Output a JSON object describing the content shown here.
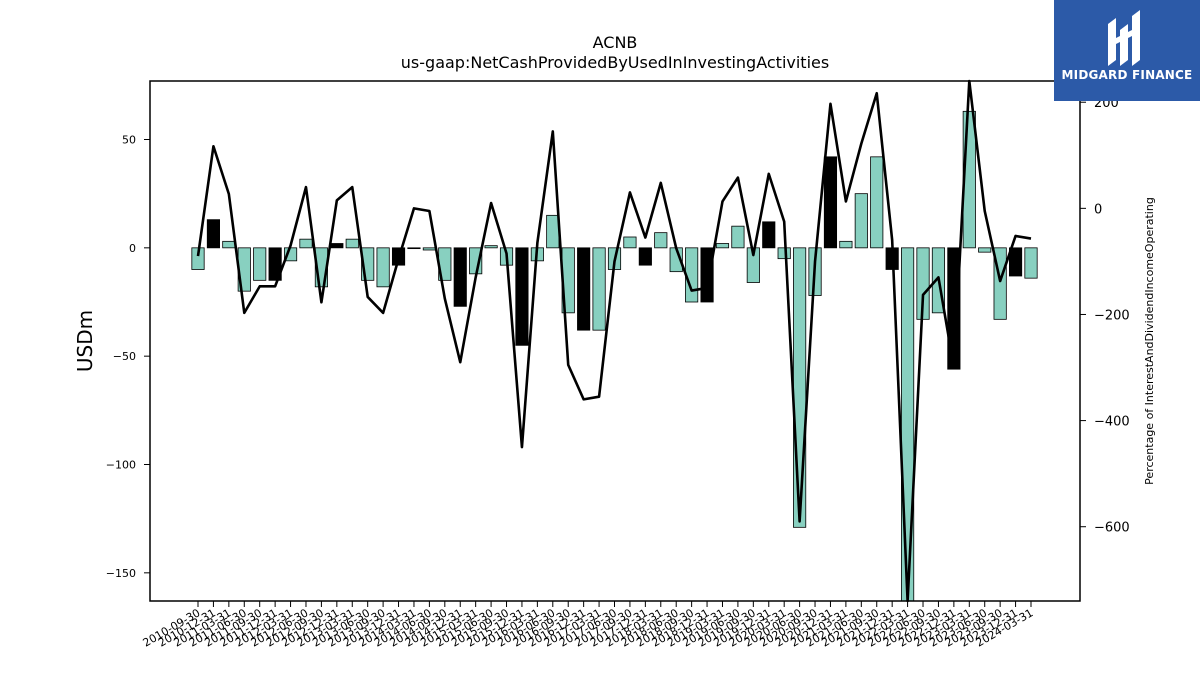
{
  "brand": {
    "name": "MIDGARD FINANCE",
    "color": "#2c5aa8"
  },
  "chart_data": {
    "type": "bar",
    "title": "ACNB",
    "subtitle": "us-gaap:NetCashProvidedByUsedInInvestingActivities",
    "ylabel": "USDm",
    "y2label": "Percentage of InterestAndDividendIncomeOperating",
    "ylim": [
      -163,
      77
    ],
    "y2lim": [
      -740,
      240
    ],
    "yticks": [
      -150,
      -100,
      -50,
      0,
      50
    ],
    "y2ticks": [
      -600,
      -400,
      -200,
      0,
      200
    ],
    "bar_colors": {
      "normal": "#88d0c0",
      "q4": "#000000"
    },
    "categories": [
      "2010-09-30",
      "2010-12-31",
      "2011-03-31",
      "2011-06-30",
      "2011-09-30",
      "2011-12-31",
      "2012-03-31",
      "2012-06-30",
      "2012-09-30",
      "2012-12-31",
      "2013-03-31",
      "2013-06-30",
      "2013-09-30",
      "2013-12-31",
      "2014-03-31",
      "2014-06-30",
      "2014-09-30",
      "2014-12-31",
      "2015-03-31",
      "2015-06-30",
      "2015-09-30",
      "2015-12-31",
      "2016-03-31",
      "2016-06-30",
      "2016-09-30",
      "2016-12-31",
      "2017-03-31",
      "2017-06-30",
      "2017-09-30",
      "2017-12-31",
      "2018-03-31",
      "2018-06-30",
      "2018-09-30",
      "2018-12-31",
      "2019-03-31",
      "2019-06-30",
      "2019-09-30",
      "2019-12-31",
      "2020-03-31",
      "2020-06-30",
      "2020-09-30",
      "2020-12-31",
      "2021-03-31",
      "2021-06-30",
      "2021-09-30",
      "2021-12-31",
      "2022-03-31",
      "2022-06-30",
      "2022-09-30",
      "2022-12-31",
      "2023-03-31",
      "2023-06-30",
      "2023-09-30",
      "2023-12-31",
      "2024-03-31"
    ],
    "x_tick_labels": [
      "2010-09-30",
      "2010-12-31",
      "2011-03-31",
      "2011-06-30",
      "2011-09-30",
      "2011-12-31",
      "2012-03-31",
      "2012-06-30",
      "2012-09-30",
      "2012-12-31",
      "2013-03-31",
      "2013-06-30",
      "2013-09-30",
      "2013-12-31",
      "2014-03-31",
      "2014-06-30",
      "2014-09-30",
      "2014-12-31",
      "2015-03-31",
      "2015-06-30",
      "2015-09-30",
      "2015-12-31",
      "2016-03-31",
      "2016-06-30",
      "2016-09-30",
      "2016-12-31",
      "2017-03-31",
      "2017-06-30",
      "2017-09-30",
      "2017-12-31",
      "2018-03-31",
      "2018-06-30",
      "2018-09-30",
      "2018-12-31",
      "2019-03-31",
      "2019-06-30",
      "2019-09-30",
      "2019-12-31",
      "2020-03-31",
      "2020-06-30",
      "2020-09-30",
      "2020-12-31",
      "2021-03-31",
      "2021-06-30",
      "2021-09-30",
      "2021-12-31",
      "2022-03-31",
      "2022-06-30",
      "2022-09-30",
      "2022-12-31",
      "2023-03-31",
      "2023-06-30",
      "2023-09-30",
      "2023-12-31",
      "2024-03-31"
    ],
    "series": [
      {
        "axis": "left",
        "kind": "bar",
        "values": [
          -10,
          13,
          3,
          -20,
          -15,
          -15,
          -6,
          4,
          -18,
          2,
          4,
          -15,
          -18,
          -8,
          0,
          -1,
          -15,
          -27,
          -12,
          1,
          -8,
          -45,
          -6,
          15,
          -30,
          -38,
          -38,
          -10,
          5,
          -8,
          7,
          -11,
          -25,
          -25,
          2,
          10,
          -16,
          12,
          -5,
          -129,
          -22,
          42,
          3,
          25,
          42,
          -10,
          -163,
          -33,
          -30,
          -56,
          63,
          -2,
          -33,
          -13,
          -14
        ],
        "highlight": [
          false,
          true,
          false,
          false,
          false,
          true,
          false,
          false,
          false,
          true,
          false,
          false,
          false,
          true,
          false,
          false,
          false,
          true,
          false,
          false,
          false,
          true,
          false,
          false,
          false,
          true,
          false,
          false,
          false,
          true,
          false,
          false,
          false,
          true,
          false,
          false,
          false,
          true,
          false,
          false,
          false,
          true,
          false,
          false,
          false,
          true,
          false,
          false,
          false,
          true,
          false,
          false,
          false,
          true,
          false
        ]
      },
      {
        "axis": "right",
        "kind": "line",
        "color": "#000000",
        "values": [
          -90,
          117,
          27,
          -197,
          -147,
          -147,
          -70,
          40,
          -177,
          15,
          40,
          -167,
          -197,
          -95,
          0,
          -5,
          -170,
          -290,
          -130,
          10,
          -85,
          -450,
          -65,
          145,
          -295,
          -360,
          -355,
          -100,
          30,
          -55,
          48,
          -75,
          -155,
          -150,
          13,
          58,
          -88,
          65,
          -25,
          -590,
          -100,
          197,
          13,
          122,
          217,
          -60,
          -760,
          -163,
          -130,
          -300,
          243,
          -5,
          -137,
          -52,
          -57
        ]
      }
    ]
  }
}
